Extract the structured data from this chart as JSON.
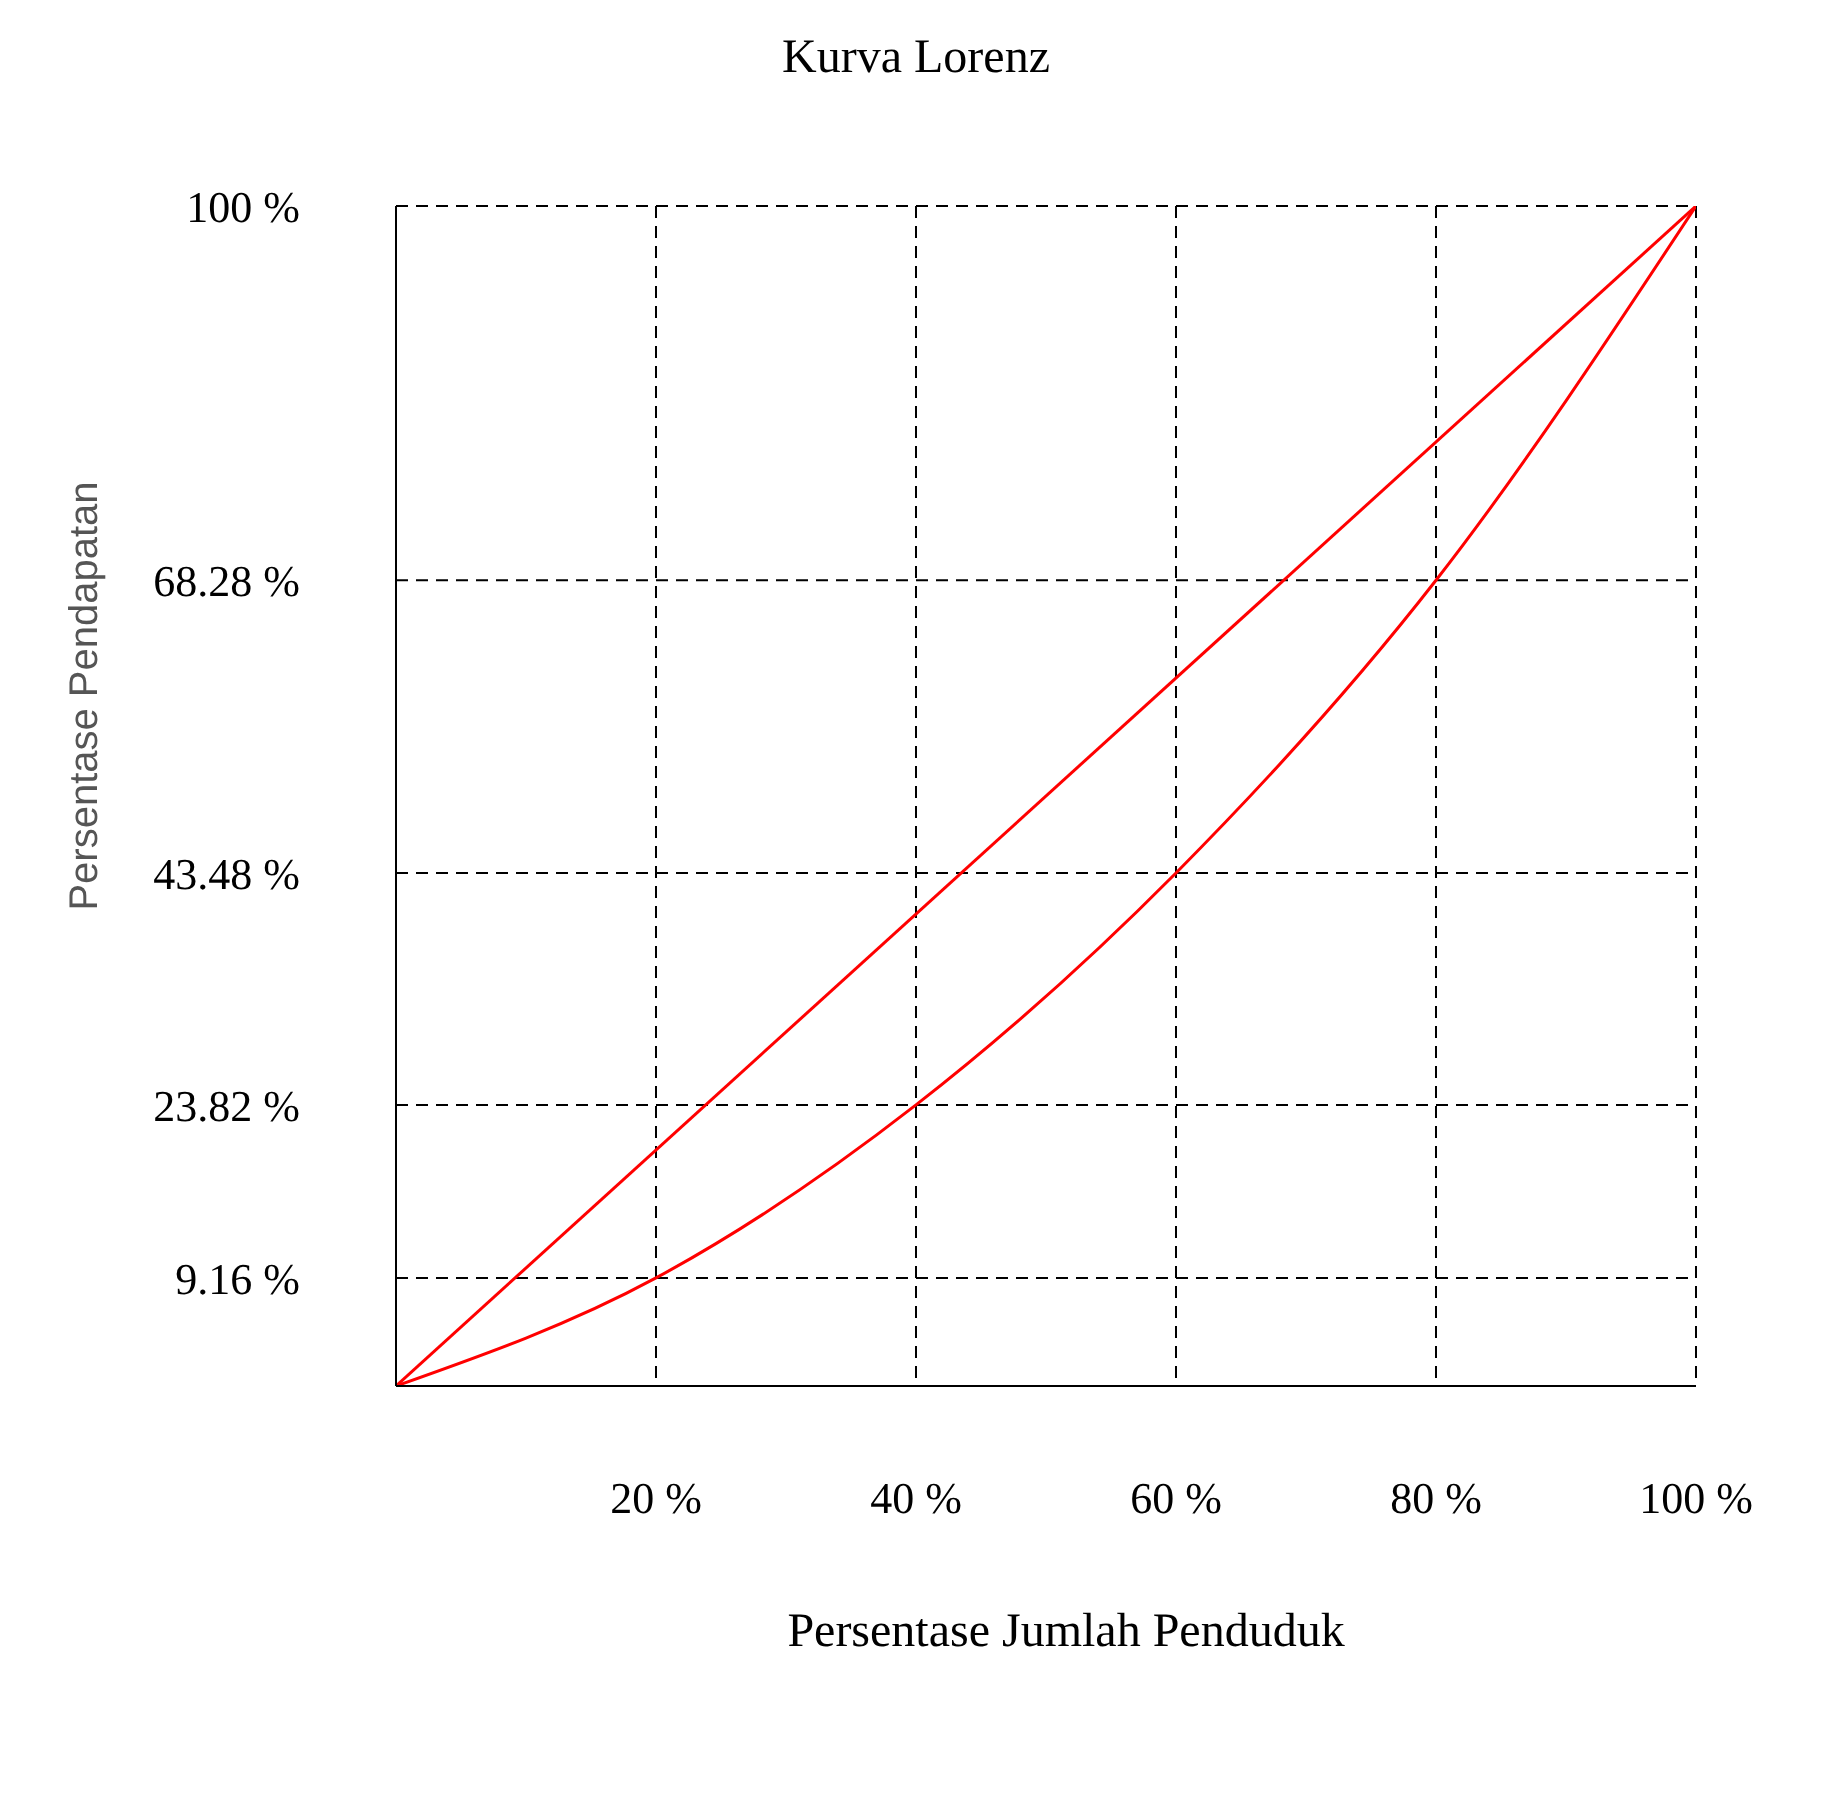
{
  "chart_data": {
    "type": "line",
    "title": "Kurva Lorenz",
    "xlabel": "Persentase Jumlah Penduduk",
    "ylabel": "Persentase Pendapatan",
    "xlim": [
      0,
      100
    ],
    "ylim": [
      0,
      100
    ],
    "xticks": [
      {
        "value": 20,
        "label": "20 %"
      },
      {
        "value": 40,
        "label": "40 %"
      },
      {
        "value": 60,
        "label": "60 %"
      },
      {
        "value": 80,
        "label": "80 %"
      },
      {
        "value": 100,
        "label": "100 %"
      }
    ],
    "yticks": [
      {
        "value": 9.16,
        "label": "9.16 %"
      },
      {
        "value": 23.82,
        "label": "23.82 %"
      },
      {
        "value": 43.48,
        "label": "43.48 %"
      },
      {
        "value": 68.28,
        "label": "68.28 %"
      },
      {
        "value": 100,
        "label": "100 %"
      }
    ],
    "grid": true,
    "marker": "none",
    "series": [
      {
        "color": "#ff0000",
        "x": [
          0,
          20,
          40,
          60,
          80,
          100
        ],
        "values": [
          0,
          9.16,
          23.82,
          43.48,
          68.28,
          100
        ]
      },
      {
        "color": "#ff0000",
        "x": [
          0,
          100
        ],
        "values": [
          0,
          100
        ]
      }
    ]
  }
}
